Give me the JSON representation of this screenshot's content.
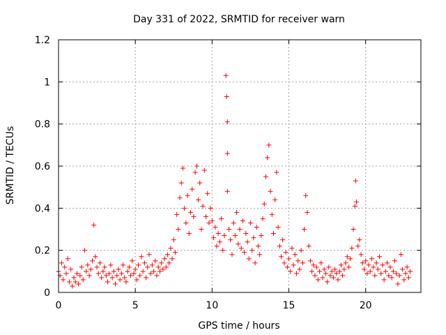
{
  "chart_data": {
    "type": "scatter",
    "title": "Day 331 of 2022, SRMTID for receiver warn",
    "xlabel": "GPS time / hours",
    "ylabel": "SRMTID / TECUs",
    "xlim": [
      0,
      23.6
    ],
    "ylim": [
      0,
      1.2
    ],
    "xticks": [
      0,
      5,
      10,
      15,
      20
    ],
    "yticks": [
      0,
      0.2,
      0.4,
      0.6,
      0.8,
      1,
      1.2
    ],
    "grid": true,
    "marker": "+",
    "series": [
      {
        "name": "SRMTID",
        "color": "#ff0000",
        "points": [
          [
            0.0,
            0.1
          ],
          [
            0.1,
            0.08
          ],
          [
            0.2,
            0.14
          ],
          [
            0.3,
            0.06
          ],
          [
            0.4,
            0.12
          ],
          [
            0.5,
            0.09
          ],
          [
            0.6,
            0.16
          ],
          [
            0.7,
            0.05
          ],
          [
            0.8,
            0.11
          ],
          [
            0.9,
            0.03
          ],
          [
            1.0,
            0.07
          ],
          [
            1.1,
            0.05
          ],
          [
            1.2,
            0.09
          ],
          [
            1.3,
            0.04
          ],
          [
            1.4,
            0.08
          ],
          [
            1.5,
            0.12
          ],
          [
            1.6,
            0.06
          ],
          [
            1.7,
            0.2
          ],
          [
            1.8,
            0.1
          ],
          [
            1.9,
            0.13
          ],
          [
            2.0,
            0.08
          ],
          [
            2.1,
            0.11
          ],
          [
            2.2,
            0.15
          ],
          [
            2.3,
            0.32
          ],
          [
            2.4,
            0.17
          ],
          [
            2.5,
            0.12
          ],
          [
            2.6,
            0.09
          ],
          [
            2.7,
            0.14
          ],
          [
            2.8,
            0.07
          ],
          [
            2.9,
            0.1
          ],
          [
            3.0,
            0.12
          ],
          [
            3.1,
            0.08
          ],
          [
            3.2,
            0.05
          ],
          [
            3.3,
            0.09
          ],
          [
            3.4,
            0.13
          ],
          [
            3.5,
            0.07
          ],
          [
            3.6,
            0.1
          ],
          [
            3.7,
            0.04
          ],
          [
            3.8,
            0.08
          ],
          [
            3.9,
            0.11
          ],
          [
            4.0,
            0.06
          ],
          [
            4.1,
            0.09
          ],
          [
            4.2,
            0.13
          ],
          [
            4.3,
            0.07
          ],
          [
            4.4,
            0.05
          ],
          [
            4.5,
            0.1
          ],
          [
            4.6,
            0.12
          ],
          [
            4.7,
            0.08
          ],
          [
            4.8,
            0.15
          ],
          [
            4.9,
            0.09
          ],
          [
            5.0,
            0.11
          ],
          [
            5.1,
            0.06
          ],
          [
            5.2,
            0.13
          ],
          [
            5.3,
            0.08
          ],
          [
            5.4,
            0.17
          ],
          [
            5.5,
            0.1
          ],
          [
            5.6,
            0.14
          ],
          [
            5.7,
            0.07
          ],
          [
            5.8,
            0.12
          ],
          [
            5.9,
            0.18
          ],
          [
            6.0,
            0.09
          ],
          [
            6.1,
            0.13
          ],
          [
            6.2,
            0.1
          ],
          [
            6.3,
            0.15
          ],
          [
            6.4,
            0.08
          ],
          [
            6.5,
            0.12
          ],
          [
            6.6,
            0.1
          ],
          [
            6.7,
            0.14
          ],
          [
            6.8,
            0.11
          ],
          [
            6.9,
            0.16
          ],
          [
            7.0,
            0.12
          ],
          [
            7.1,
            0.18
          ],
          [
            7.2,
            0.14
          ],
          [
            7.3,
            0.21
          ],
          [
            7.4,
            0.16
          ],
          [
            7.5,
            0.25
          ],
          [
            7.6,
            0.19
          ],
          [
            7.7,
            0.37
          ],
          [
            7.8,
            0.3
          ],
          [
            7.9,
            0.45
          ],
          [
            8.0,
            0.52
          ],
          [
            8.1,
            0.59
          ],
          [
            8.2,
            0.4
          ],
          [
            8.3,
            0.33
          ],
          [
            8.4,
            0.46
          ],
          [
            8.5,
            0.28
          ],
          [
            8.6,
            0.38
          ],
          [
            8.7,
            0.49
          ],
          [
            8.8,
            0.36
          ],
          [
            8.9,
            0.57
          ],
          [
            9.0,
            0.6
          ],
          [
            9.1,
            0.44
          ],
          [
            9.2,
            0.52
          ],
          [
            9.3,
            0.3
          ],
          [
            9.4,
            0.41
          ],
          [
            9.5,
            0.58
          ],
          [
            9.6,
            0.36
          ],
          [
            9.7,
            0.47
          ],
          [
            9.8,
            0.33
          ],
          [
            9.9,
            0.4
          ],
          [
            10.0,
            0.34
          ],
          [
            10.1,
            0.26
          ],
          [
            10.2,
            0.31
          ],
          [
            10.3,
            0.22
          ],
          [
            10.4,
            0.28
          ],
          [
            10.5,
            0.24
          ],
          [
            10.6,
            0.35
          ],
          [
            10.7,
            0.2
          ],
          [
            10.8,
            0.27
          ],
          [
            10.9,
            1.03
          ],
          [
            10.95,
            0.93
          ],
          [
            11.0,
            0.81
          ],
          [
            11.0,
            0.66
          ],
          [
            11.0,
            0.48
          ],
          [
            11.1,
            0.3
          ],
          [
            11.2,
            0.25
          ],
          [
            11.3,
            0.18
          ],
          [
            11.4,
            0.33
          ],
          [
            11.5,
            0.27
          ],
          [
            11.6,
            0.38
          ],
          [
            11.7,
            0.23
          ],
          [
            11.8,
            0.3
          ],
          [
            11.9,
            0.21
          ],
          [
            12.0,
            0.34
          ],
          [
            12.1,
            0.19
          ],
          [
            12.2,
            0.28
          ],
          [
            12.3,
            0.24
          ],
          [
            12.4,
            0.16
          ],
          [
            12.5,
            0.33
          ],
          [
            12.6,
            0.2
          ],
          [
            12.7,
            0.26
          ],
          [
            12.8,
            0.14
          ],
          [
            12.9,
            0.31
          ],
          [
            13.0,
            0.22
          ],
          [
            13.1,
            0.18
          ],
          [
            13.2,
            0.27
          ],
          [
            13.3,
            0.35
          ],
          [
            13.4,
            0.42
          ],
          [
            13.5,
            0.55
          ],
          [
            13.6,
            0.64
          ],
          [
            13.7,
            0.7
          ],
          [
            13.8,
            0.48
          ],
          [
            13.9,
            0.37
          ],
          [
            14.0,
            0.28
          ],
          [
            14.1,
            0.44
          ],
          [
            14.2,
            0.57
          ],
          [
            14.3,
            0.31
          ],
          [
            14.4,
            0.22
          ],
          [
            14.5,
            0.17
          ],
          [
            14.6,
            0.25
          ],
          [
            14.7,
            0.14
          ],
          [
            14.8,
            0.19
          ],
          [
            14.9,
            0.12
          ],
          [
            15.0,
            0.16
          ],
          [
            15.1,
            0.1
          ],
          [
            15.2,
            0.21
          ],
          [
            15.3,
            0.13
          ],
          [
            15.4,
            0.18
          ],
          [
            15.5,
            0.09
          ],
          [
            15.6,
            0.15
          ],
          [
            15.7,
            0.11
          ],
          [
            15.8,
            0.2
          ],
          [
            15.9,
            0.14
          ],
          [
            16.0,
            0.3
          ],
          [
            16.1,
            0.46
          ],
          [
            16.2,
            0.38
          ],
          [
            16.3,
            0.22
          ],
          [
            16.4,
            0.15
          ],
          [
            16.5,
            0.1
          ],
          [
            16.6,
            0.13
          ],
          [
            16.7,
            0.08
          ],
          [
            16.8,
            0.12
          ],
          [
            16.9,
            0.06
          ],
          [
            17.0,
            0.1
          ],
          [
            17.1,
            0.14
          ],
          [
            17.2,
            0.07
          ],
          [
            17.3,
            0.11
          ],
          [
            17.4,
            0.09
          ],
          [
            17.5,
            0.05
          ],
          [
            17.6,
            0.12
          ],
          [
            17.7,
            0.08
          ],
          [
            17.8,
            0.1
          ],
          [
            17.9,
            0.07
          ],
          [
            18.0,
            0.11
          ],
          [
            18.1,
            0.09
          ],
          [
            18.2,
            0.06
          ],
          [
            18.3,
            0.1
          ],
          [
            18.4,
            0.13
          ],
          [
            18.5,
            0.08
          ],
          [
            18.6,
            0.11
          ],
          [
            18.7,
            0.14
          ],
          [
            18.8,
            0.17
          ],
          [
            18.9,
            0.12
          ],
          [
            19.0,
            0.16
          ],
          [
            19.1,
            0.21
          ],
          [
            19.2,
            0.3
          ],
          [
            19.3,
            0.41
          ],
          [
            19.35,
            0.53
          ],
          [
            19.4,
            0.43
          ],
          [
            19.5,
            0.22
          ],
          [
            19.6,
            0.25
          ],
          [
            19.7,
            0.18
          ],
          [
            19.8,
            0.14
          ],
          [
            19.9,
            0.11
          ],
          [
            20.0,
            0.15
          ],
          [
            20.1,
            0.09
          ],
          [
            20.2,
            0.13
          ],
          [
            20.3,
            0.1
          ],
          [
            20.4,
            0.16
          ],
          [
            20.5,
            0.12
          ],
          [
            20.6,
            0.08
          ],
          [
            20.7,
            0.14
          ],
          [
            20.8,
            0.11
          ],
          [
            20.9,
            0.17
          ],
          [
            21.0,
            0.09
          ],
          [
            21.1,
            0.13
          ],
          [
            21.2,
            0.06
          ],
          [
            21.3,
            0.1
          ],
          [
            21.4,
            0.14
          ],
          [
            21.5,
            0.08
          ],
          [
            21.6,
            0.12
          ],
          [
            21.7,
            0.07
          ],
          [
            21.8,
            0.1
          ],
          [
            21.9,
            0.15
          ],
          [
            22.0,
            0.09
          ],
          [
            22.1,
            0.04
          ],
          [
            22.2,
            0.08
          ],
          [
            22.3,
            0.18
          ],
          [
            22.4,
            0.11
          ],
          [
            22.5,
            0.06
          ],
          [
            22.6,
            0.09
          ],
          [
            22.7,
            0.12
          ],
          [
            22.8,
            0.07
          ],
          [
            22.9,
            0.1
          ]
        ]
      }
    ]
  }
}
